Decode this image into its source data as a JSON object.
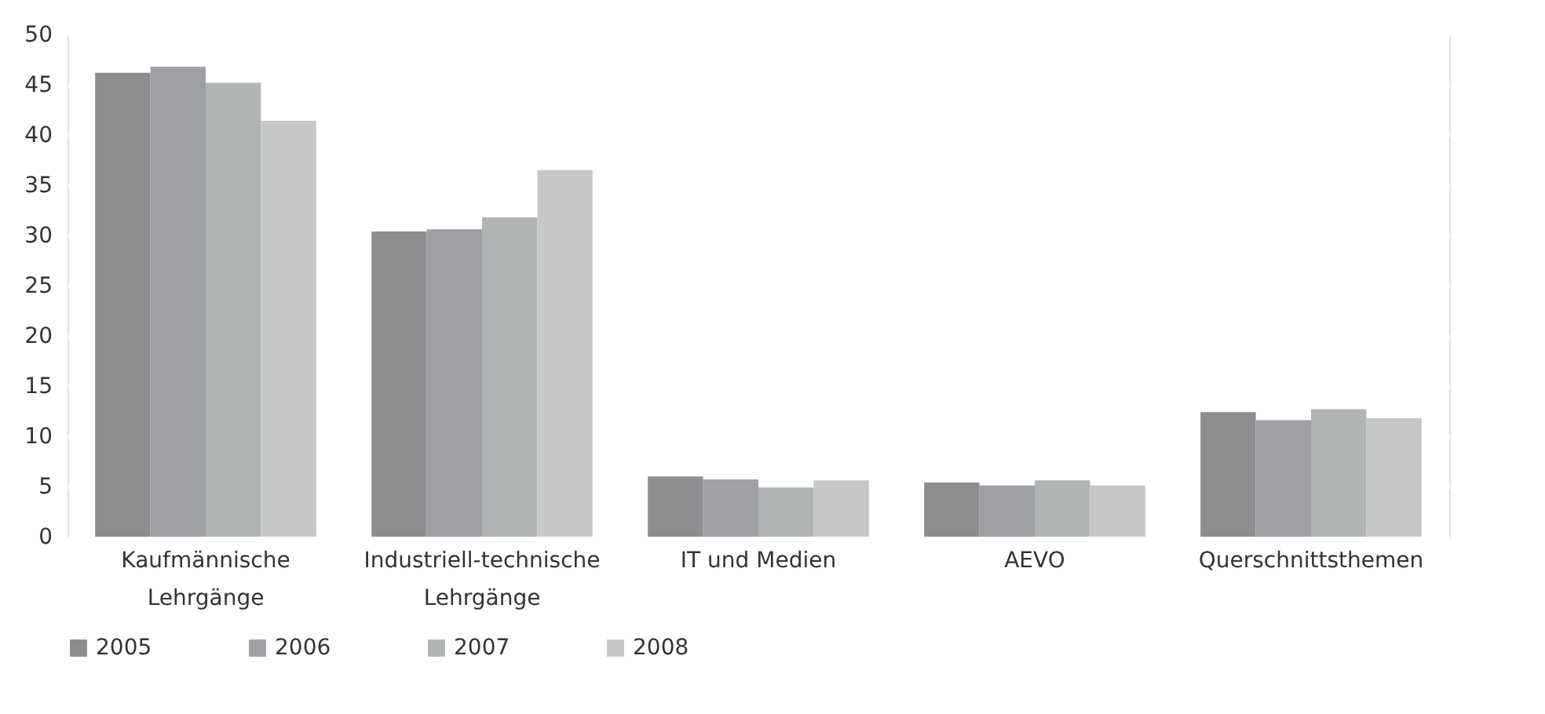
{
  "chart_data": {
    "type": "bar",
    "categories": [
      "Kaufmännische Lehrgänge",
      "Industriell-technische Lehrgänge",
      "IT und Medien",
      "AEVO",
      "Querschnittsthemen"
    ],
    "series": [
      {
        "name": "2005",
        "color": "#8c8d8f",
        "values": [
          46.2,
          30.4,
          6.0,
          5.4,
          12.4
        ]
      },
      {
        "name": "2006",
        "color": "#9fa0a3",
        "values": [
          46.8,
          30.6,
          5.7,
          5.1,
          11.6
        ]
      },
      {
        "name": "2007",
        "color": "#b1b4b5",
        "values": [
          45.2,
          31.8,
          4.9,
          5.6,
          12.7
        ]
      },
      {
        "name": "2008",
        "color": "#c6c7c8",
        "values": [
          41.4,
          36.5,
          5.6,
          5.1,
          11.8
        ]
      }
    ],
    "ylim": [
      0,
      50
    ],
    "yticks": [
      0,
      5,
      10,
      15,
      20,
      25,
      30,
      35,
      40,
      45,
      50
    ],
    "grid": "y",
    "legend": "bottom"
  }
}
